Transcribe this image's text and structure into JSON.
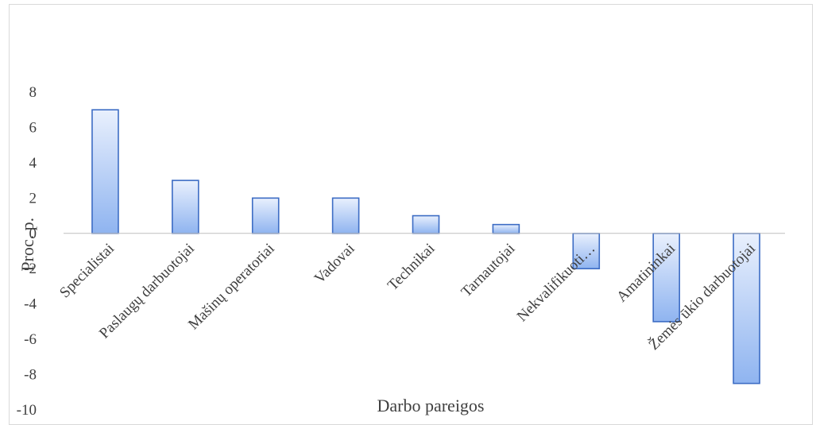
{
  "chart_data": {
    "type": "bar",
    "title": "",
    "xlabel": "Darbo pareigos",
    "ylabel": "Proc. p.",
    "ylim": [
      -10,
      8
    ],
    "yticks": [
      8,
      6,
      4,
      2,
      0,
      -2,
      -4,
      -6,
      -8,
      -10
    ],
    "gridlines": false,
    "legend": "none",
    "categories": [
      "Specialistai",
      "Paslaugų darbuotojai",
      "Mašinų operatoriai",
      "Vadovai",
      "Technikai",
      "Tarnautojai",
      "Nekvalifikuoti…",
      "Amatininkai",
      "Žemės ūkio darbuotojai"
    ],
    "values": [
      7,
      3,
      2,
      2,
      1,
      0.5,
      -2,
      -5,
      -8.5
    ],
    "colors": {
      "bar_fill_light": "#e9f0fd",
      "bar_fill_dark": "#8fb4f0",
      "bar_stroke": "#3c6cc4",
      "axis_line": "#bfbfbf",
      "text": "#404040"
    }
  }
}
